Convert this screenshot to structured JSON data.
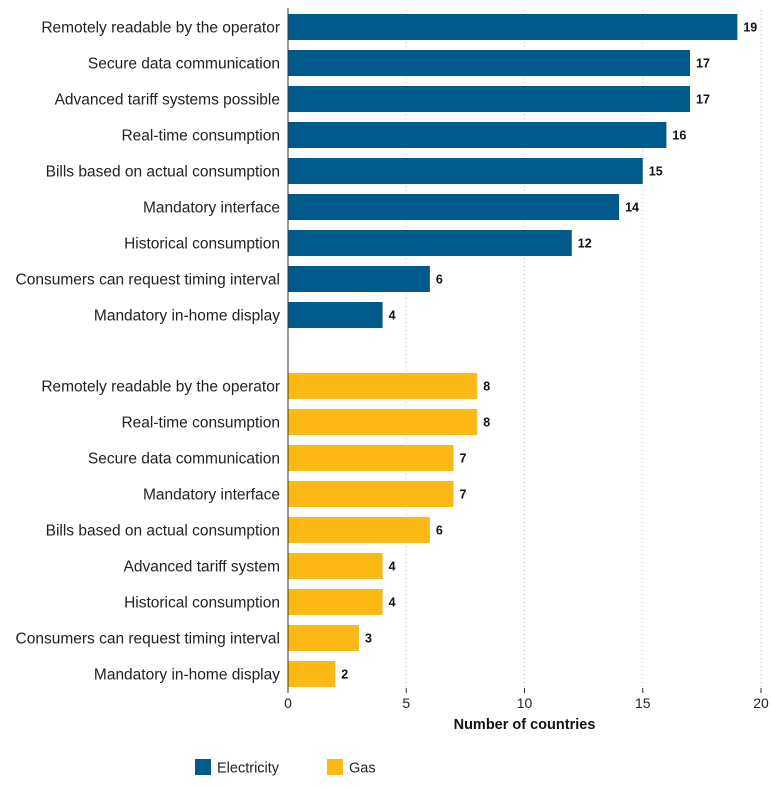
{
  "chart_data": {
    "type": "bar",
    "orientation": "horizontal",
    "xlabel": "Number of countries",
    "xlim": [
      0,
      20
    ],
    "xticks": [
      0,
      5,
      10,
      15,
      20
    ],
    "grid": "vertical dotted",
    "legend_position": "bottom-left",
    "series": [
      {
        "name": "Electricity",
        "color": "#005a8c",
        "categories": [
          "Remotely readable by the operator",
          "Secure data communication",
          "Advanced tariff systems possible",
          "Real-time consumption",
          "Bills based on actual consumption",
          "Mandatory interface",
          "Historical consumption",
          "Consumers can request timing interval",
          "Mandatory in-home display"
        ],
        "values": [
          19,
          17,
          17,
          16,
          15,
          14,
          12,
          6,
          4
        ]
      },
      {
        "name": "Gas",
        "color": "#fdb913",
        "categories": [
          "Remotely readable by the operator",
          "Real-time consumption",
          "Secure data communication",
          "Mandatory interface",
          "Bills based on actual consumption",
          "Advanced tariff system",
          "Historical consumption",
          "Consumers can request timing interval",
          "Mandatory in-home display"
        ],
        "values": [
          8,
          8,
          7,
          7,
          6,
          4,
          4,
          3,
          2
        ]
      }
    ]
  }
}
